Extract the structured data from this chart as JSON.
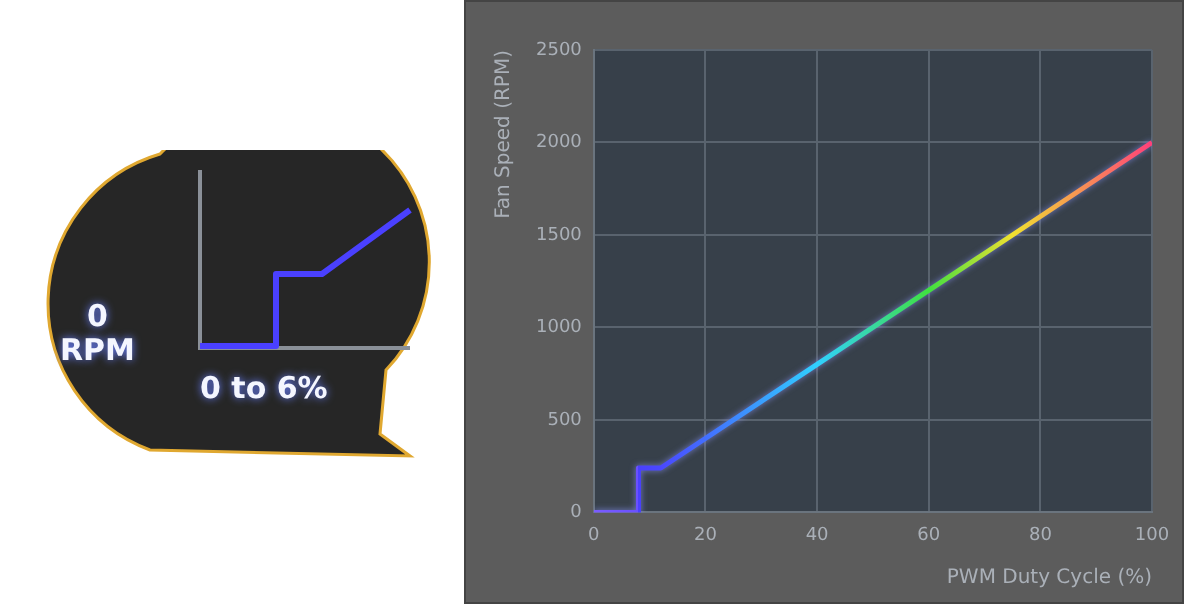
{
  "chart_data": {
    "type": "line",
    "xlabel": "PWM Duty Cycle (%)",
    "ylabel": "Fan Speed (RPM)",
    "series": [
      {
        "x": [
          0,
          8,
          8,
          12,
          40,
          60,
          75,
          100
        ],
        "values": [
          0,
          0,
          240,
          240,
          800,
          1200,
          1500,
          2000
        ],
        "colors": [
          "#7b5cff",
          "#6a50ff",
          "#4a40ff",
          "#4a48ff",
          "#30d0ff",
          "#40e040",
          "#f0e030",
          "#ff3f7a"
        ]
      }
    ],
    "xlim": [
      0,
      100
    ],
    "xticks": [
      0,
      20,
      40,
      60,
      80,
      100
    ],
    "ylim": [
      0,
      2500
    ],
    "yticks": [
      0,
      500,
      1000,
      1500,
      2000,
      2500
    ],
    "grid": true,
    "legend": false,
    "marker": "none",
    "line_style": "solid",
    "annotations": [
      "0\nRPM",
      "0 to 6%"
    ]
  }
}
